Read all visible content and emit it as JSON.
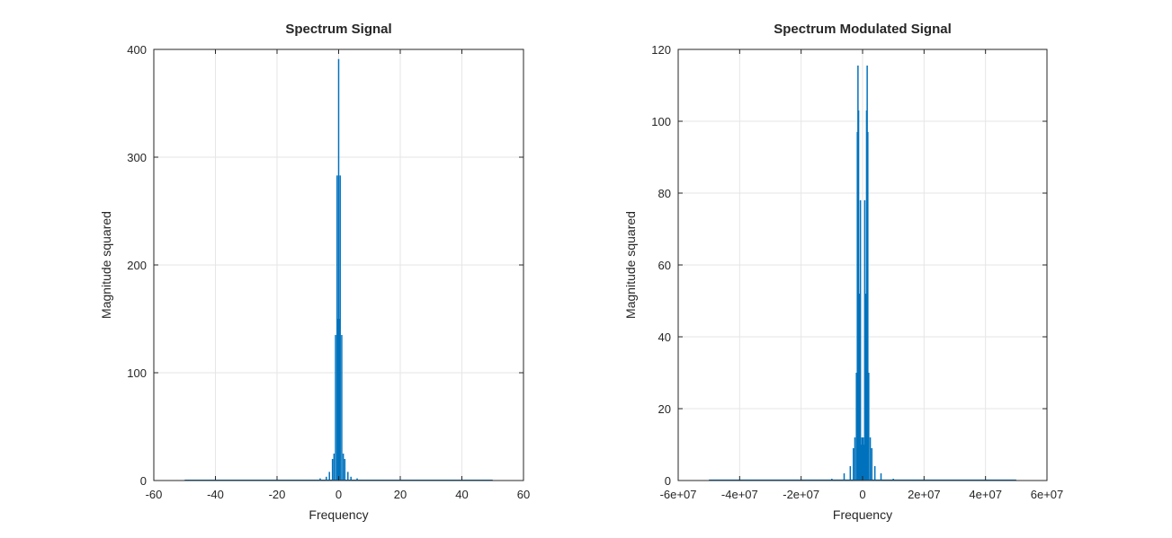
{
  "chart_data": [
    {
      "type": "line",
      "title": "Spectrum Signal",
      "xlabel": "Frequency",
      "ylabel": "Magnitude squared",
      "xlim": [
        -60,
        60
      ],
      "ylim": [
        0,
        400
      ],
      "xticks": [
        -60,
        -40,
        -20,
        0,
        20,
        40,
        60
      ],
      "xtick_labels": [
        "-60",
        "-40",
        "-20",
        "0",
        "20",
        "40",
        "60"
      ],
      "yticks": [
        0,
        100,
        200,
        300,
        400
      ],
      "ytick_labels": [
        "0",
        "100",
        "200",
        "300",
        "400"
      ],
      "grid": true,
      "legend": "none",
      "color": "#0072BD",
      "series": [
        {
          "x": [
            -50,
            -20,
            -10,
            -6,
            -4,
            -3,
            -2,
            -1.5,
            -1,
            -0.5,
            -0.3,
            0,
            0.3,
            0.5,
            1,
            1.5,
            2,
            3,
            4,
            6,
            10,
            20,
            50
          ],
          "values": [
            0.2,
            0.4,
            0.8,
            2,
            3.5,
            8,
            20,
            25,
            135,
            283,
            150,
            391,
            150,
            283,
            135,
            25,
            20,
            8,
            3.5,
            2,
            0.8,
            0.4,
            0.2
          ]
        }
      ]
    },
    {
      "type": "line",
      "title": "Spectrum Modulated Signal",
      "xlabel": "Frequency",
      "ylabel": "Magnitude squared",
      "xlim": [
        -60000000,
        60000000
      ],
      "ylim": [
        0,
        120
      ],
      "xticks": [
        -60000000,
        -40000000,
        -20000000,
        0,
        20000000,
        40000000,
        60000000
      ],
      "xtick_labels": [
        "-6e+07",
        "-4e+07",
        "-2e+07",
        "0",
        "2e+07",
        "4e+07",
        "6e+07"
      ],
      "yticks": [
        0,
        20,
        40,
        60,
        80,
        100,
        120
      ],
      "ytick_labels": [
        "0",
        "20",
        "40",
        "60",
        "80",
        "100",
        "120"
      ],
      "grid": true,
      "legend": "none",
      "color": "#0072BD",
      "series": [
        {
          "x": [
            -50000000,
            -20000000,
            -10000000,
            -6000000,
            -4000000,
            -3000000,
            -2500000,
            -2000000,
            -1700000,
            -1500000,
            -1300000,
            -1000000,
            -700000,
            -400000,
            -200000,
            0,
            200000,
            400000,
            700000,
            1000000,
            1300000,
            1500000,
            1700000,
            2000000,
            2500000,
            3000000,
            4000000,
            6000000,
            10000000,
            20000000,
            50000000
          ],
          "values": [
            0.1,
            0.2,
            0.5,
            2,
            4,
            9,
            12,
            30,
            97,
            115.5,
            103,
            52,
            78,
            10,
            12,
            5,
            12,
            10,
            78,
            52,
            103,
            115.5,
            97,
            30,
            12,
            9,
            4,
            2,
            0.5,
            0.2,
            0.1
          ]
        }
      ]
    }
  ]
}
